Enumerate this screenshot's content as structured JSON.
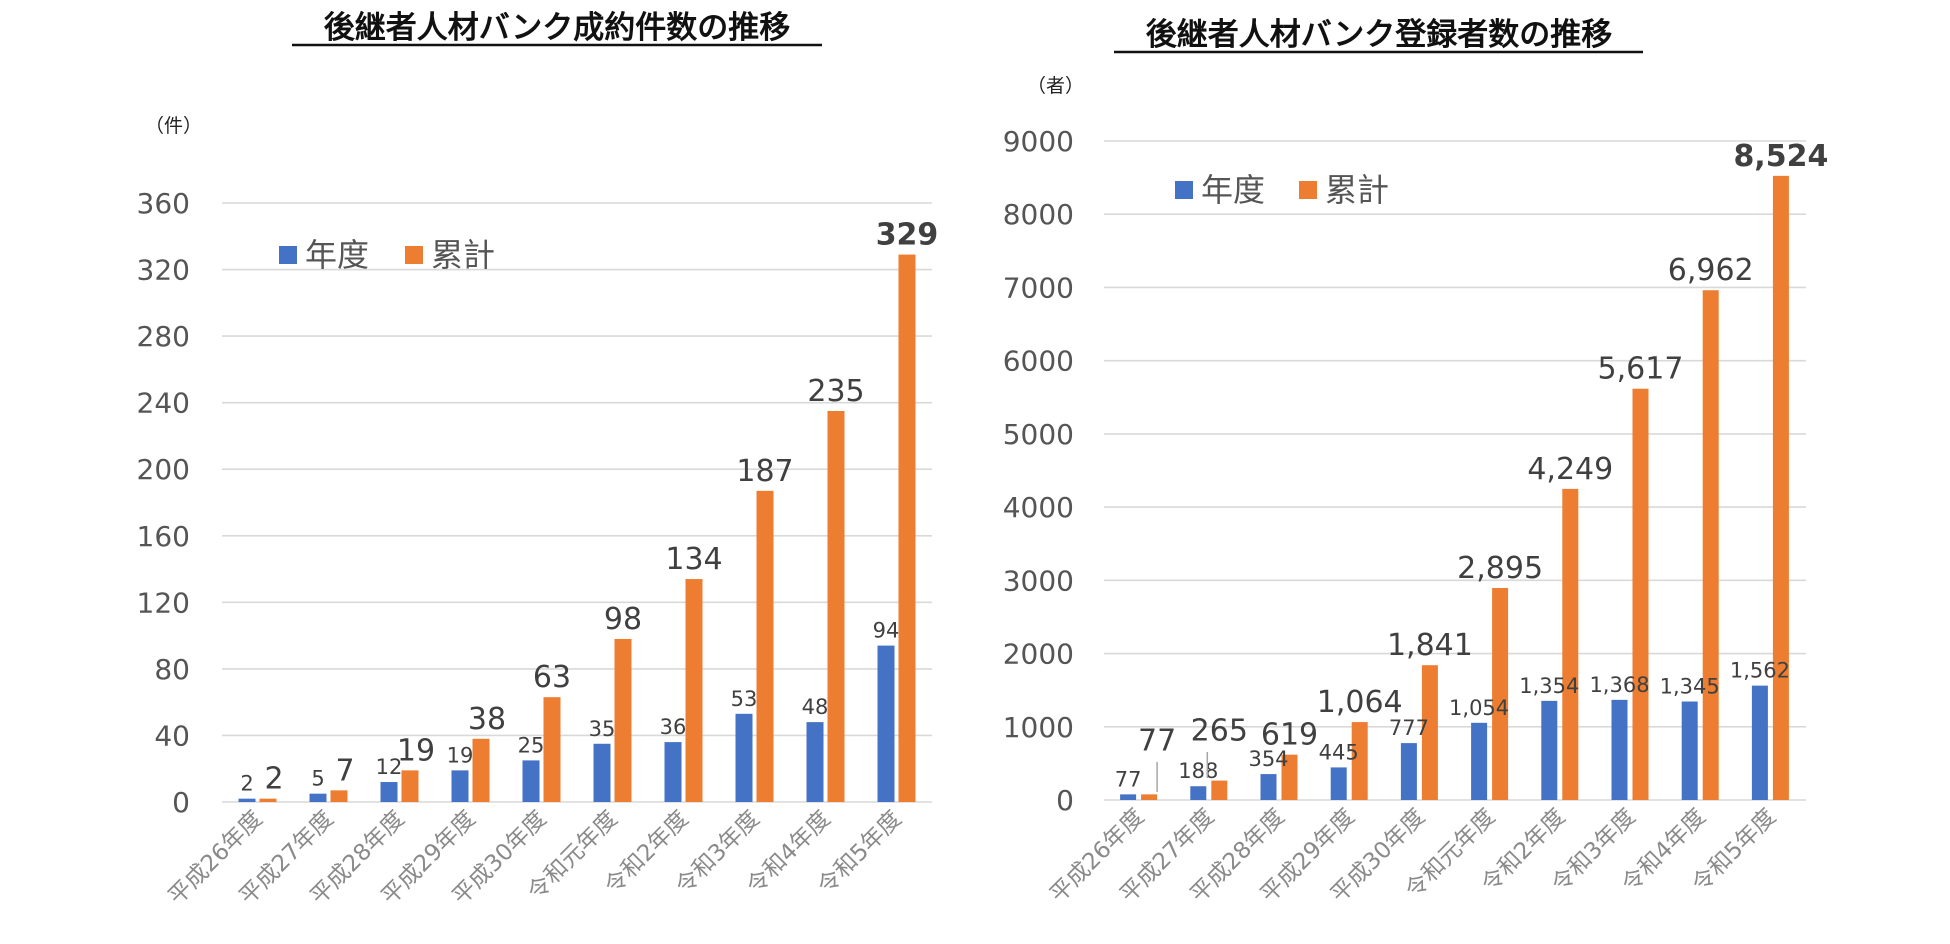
{
  "chart_data": [
    {
      "type": "bar",
      "title": "後継者人材バンク成約件数の推移",
      "unit_label": "（件）",
      "categories": [
        "平成26年度",
        "平成27年度",
        "平成28年度",
        "平成29年度",
        "平成30年度",
        "令和元年度",
        "令和2年度",
        "令和3年度",
        "令和4年度",
        "令和5年度"
      ],
      "series": [
        {
          "name": "年度",
          "color": "#4472C4",
          "values": [
            2,
            5,
            12,
            19,
            25,
            35,
            36,
            53,
            48,
            94
          ],
          "labels": [
            "2",
            "5",
            "12",
            "19",
            "25",
            "35",
            "36",
            "53",
            "48",
            "94"
          ]
        },
        {
          "name": "累計",
          "color": "#ED7D31",
          "values": [
            2,
            7,
            19,
            38,
            63,
            98,
            134,
            187,
            235,
            329
          ],
          "labels": [
            "2",
            "7",
            "19",
            "38",
            "63",
            "98",
            "134",
            "187",
            "235",
            "329"
          ]
        }
      ],
      "ylim": [
        0,
        360
      ],
      "yticks": [
        0,
        40,
        80,
        120,
        160,
        200,
        240,
        280,
        320,
        360
      ],
      "ytick_labels": [
        "0",
        "40",
        "80",
        "120",
        "160",
        "200",
        "240",
        "280",
        "320",
        "360"
      ],
      "legend": "top-left",
      "grid": true
    },
    {
      "type": "bar",
      "title": "後継者人材バンク登録者数の推移",
      "unit_label": "（者）",
      "categories": [
        "平成26年度",
        "平成27年度",
        "平成28年度",
        "平成29年度",
        "平成30年度",
        "令和元年度",
        "令和2年度",
        "令和3年度",
        "令和4年度",
        "令和5年度"
      ],
      "series": [
        {
          "name": "年度",
          "color": "#4472C4",
          "values": [
            77,
            188,
            354,
            445,
            777,
            1054,
            1354,
            1368,
            1345,
            1562
          ],
          "labels": [
            "77",
            "188",
            "354",
            "445",
            "777",
            "1,054",
            "1,354",
            "1,368",
            "1,345",
            "1,562"
          ]
        },
        {
          "name": "累計",
          "color": "#ED7D31",
          "values": [
            77,
            265,
            619,
            1064,
            1841,
            2895,
            4249,
            5617,
            6962,
            8524
          ],
          "labels": [
            "77",
            "265",
            "619",
            "1,064",
            "1,841",
            "2,895",
            "4,249",
            "5,617",
            "6,962",
            "8,524"
          ]
        }
      ],
      "ylim": [
        0,
        9000
      ],
      "yticks": [
        0,
        1000,
        2000,
        3000,
        4000,
        5000,
        6000,
        7000,
        8000,
        9000
      ],
      "ytick_labels": [
        "0",
        "1000",
        "2000",
        "3000",
        "4000",
        "5000",
        "6000",
        "7000",
        "8000",
        "9000"
      ],
      "legend": "top-left",
      "grid": true
    }
  ]
}
